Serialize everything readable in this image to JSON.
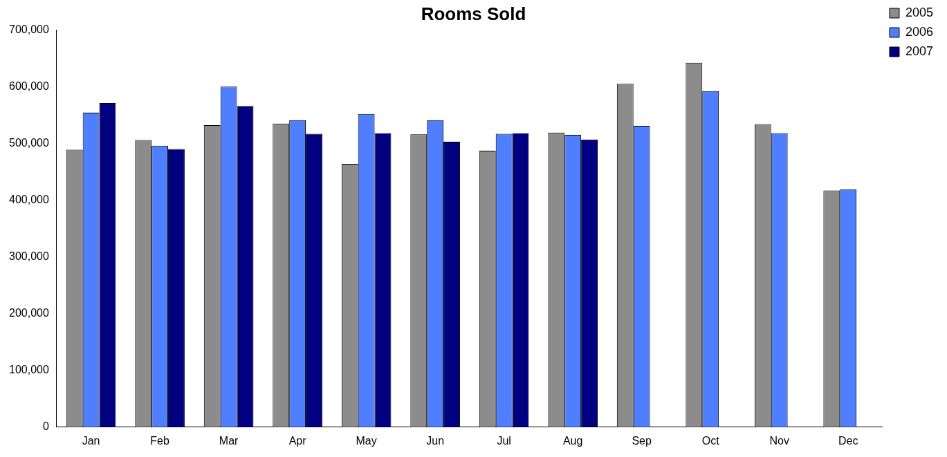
{
  "chart_data": {
    "type": "bar",
    "title": "Rooms Sold",
    "categories": [
      "Jan",
      "Feb",
      "Mar",
      "Apr",
      "May",
      "Jun",
      "Jul",
      "Aug",
      "Sep",
      "Oct",
      "Nov",
      "Dec"
    ],
    "series": [
      {
        "name": "2005",
        "color": "#8c8c8c",
        "values": [
          489000,
          506000,
          532000,
          535000,
          464000,
          516000,
          487000,
          519000,
          605000,
          642000,
          534000,
          417000
        ]
      },
      {
        "name": "2006",
        "color": "#4f7fff",
        "values": [
          554000,
          496000,
          600000,
          541000,
          552000,
          541000,
          517000,
          515000,
          531000,
          592000,
          518000,
          419000
        ]
      },
      {
        "name": "2007",
        "color": "#000080",
        "values": [
          571000,
          490000,
          566000,
          517000,
          518000,
          503000,
          518000,
          507000,
          null,
          null,
          null,
          null
        ]
      }
    ],
    "ylim": [
      0,
      700000
    ],
    "yticks": [
      0,
      {
        "value": 100000,
        "label": "100,000"
      },
      {
        "value": 200000,
        "label": "200,000"
      },
      {
        "value": 300000,
        "label": "300,000"
      },
      {
        "value": 400000,
        "label": "400,000"
      },
      {
        "value": 500000,
        "label": "500,000"
      },
      {
        "value": 600000,
        "label": "600,000"
      },
      {
        "value": 700000,
        "label": "700,000"
      }
    ],
    "grid": false,
    "legend": "top right"
  }
}
